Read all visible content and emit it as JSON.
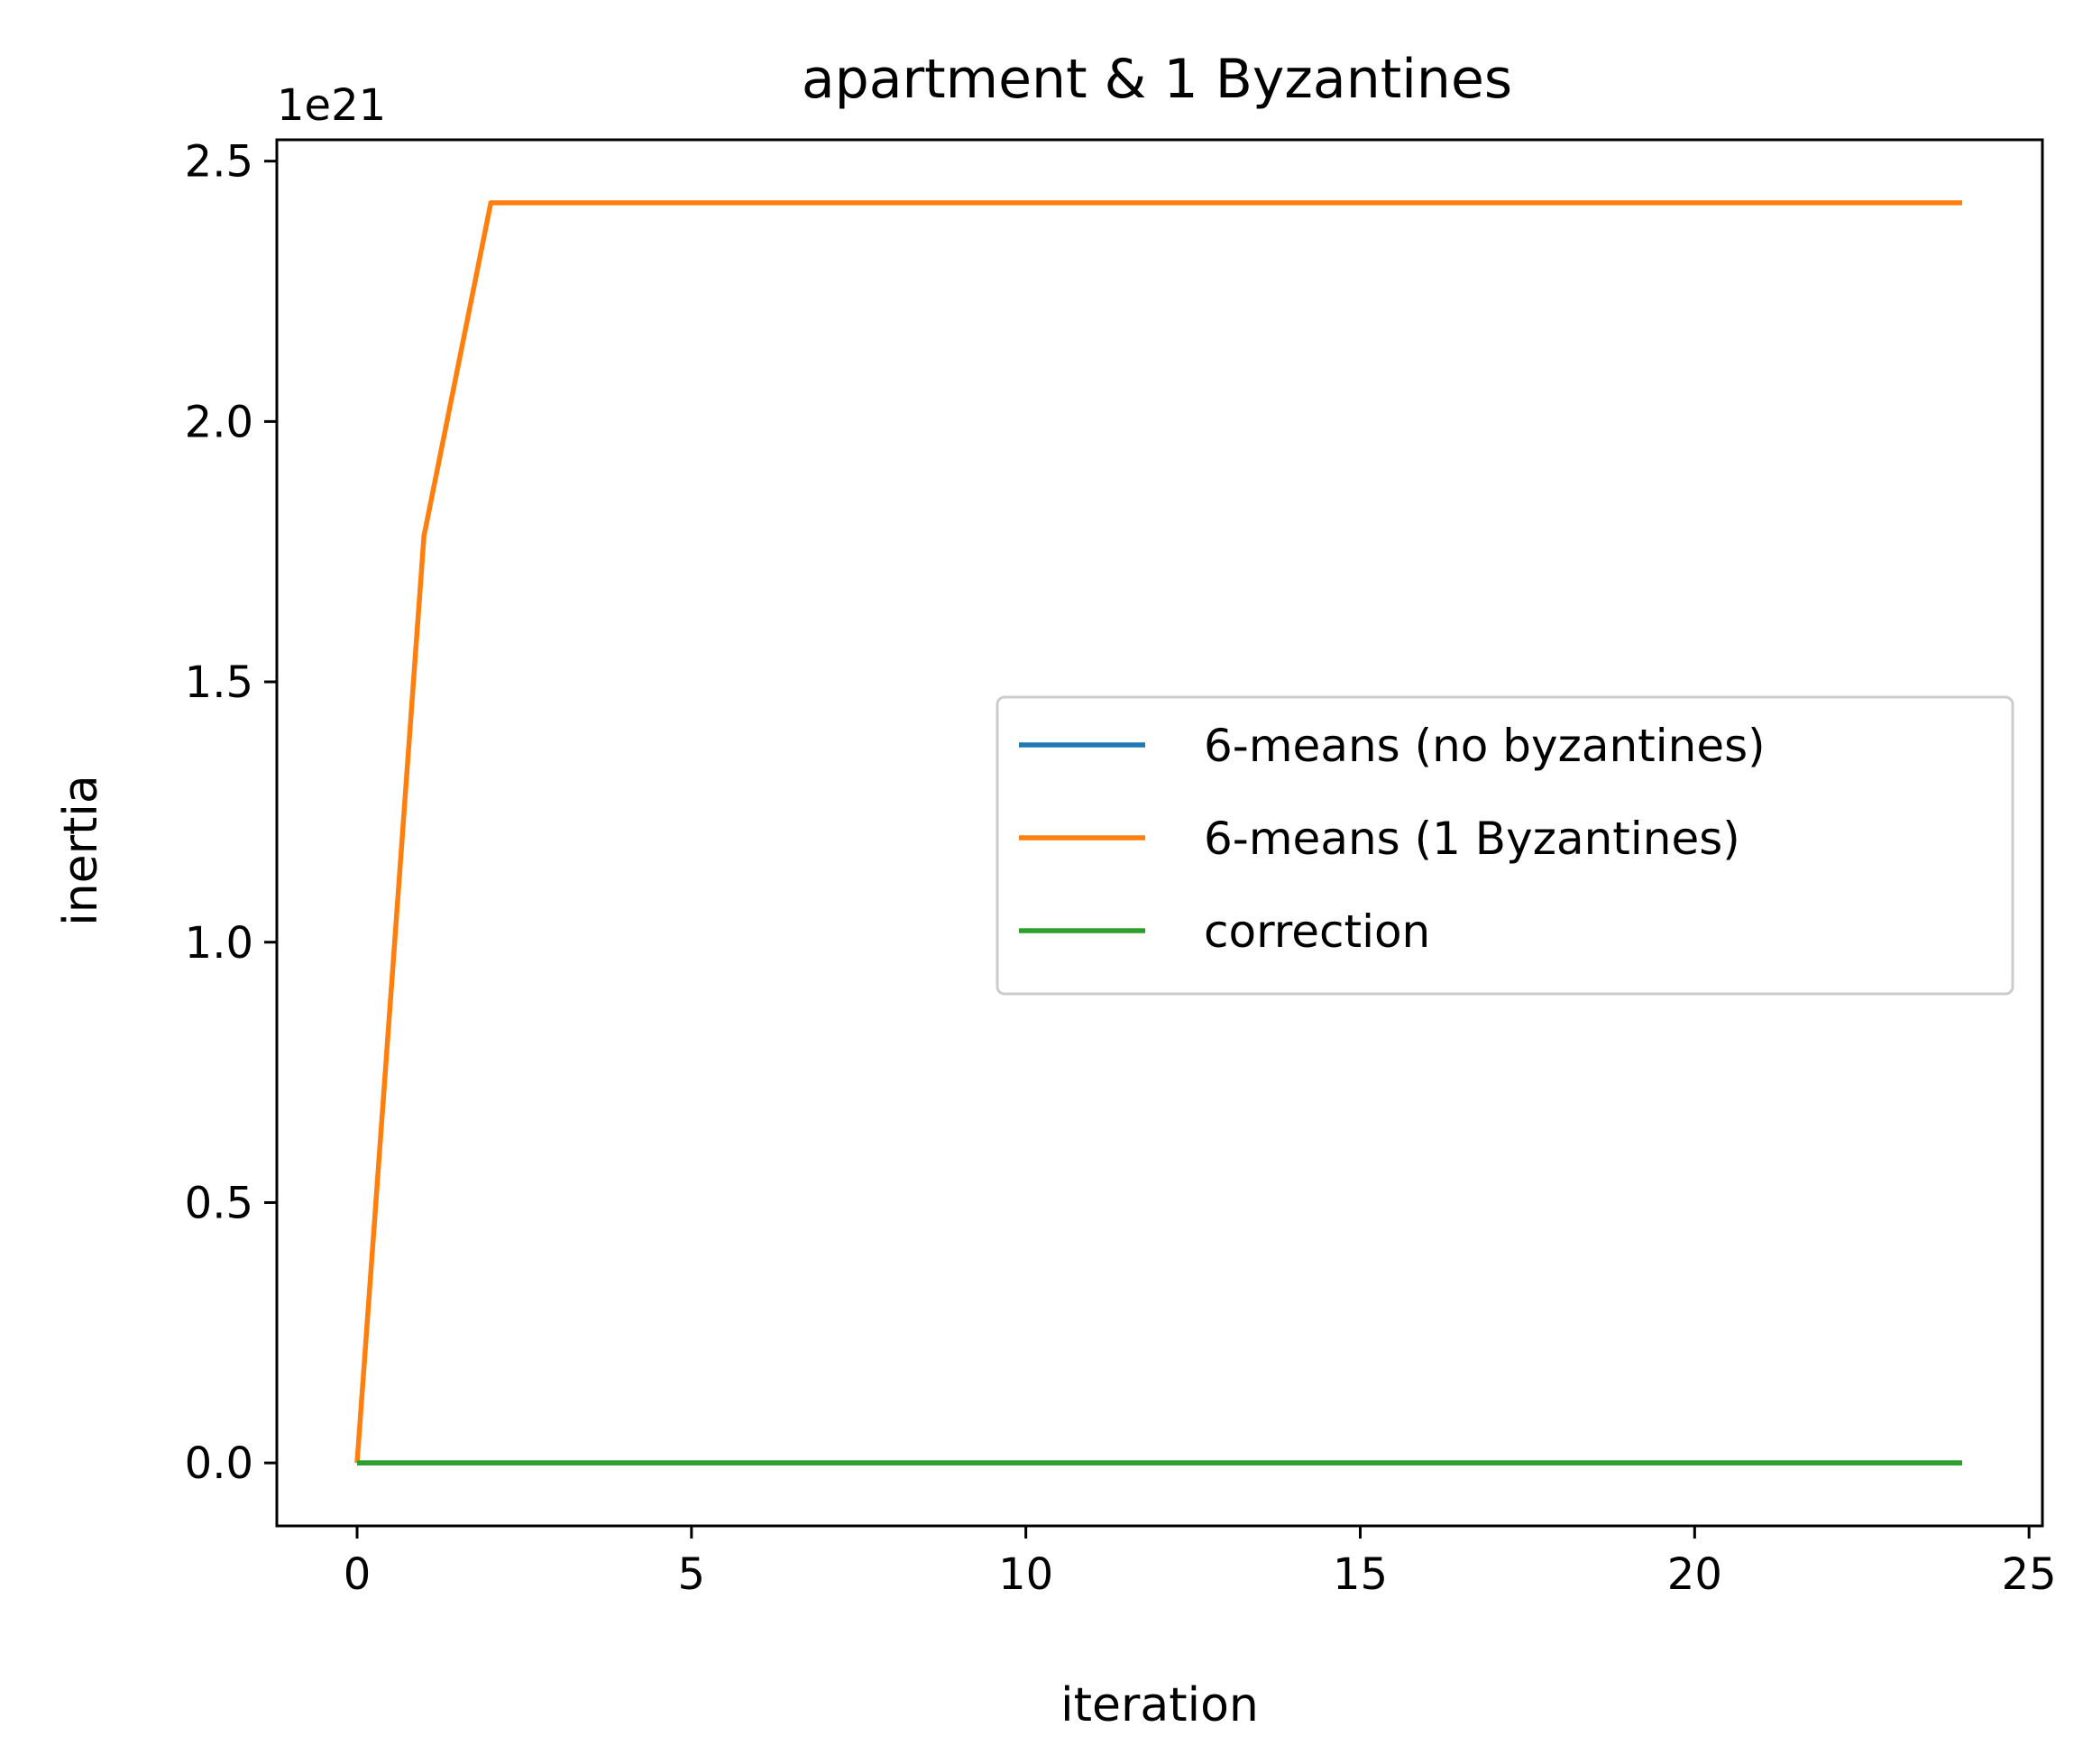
{
  "chart_data": {
    "type": "line",
    "title": "apartment & 1 Byzantines",
    "xlabel": "iteration",
    "ylabel": "inertia",
    "y_offset_label": "1e21",
    "xlim": [
      -1.2,
      25.2
    ],
    "ylim": [
      -0.121,
      2.541
    ],
    "x_ticks": [
      0,
      5,
      10,
      15,
      20,
      25
    ],
    "x_tick_labels": [
      "0",
      "5",
      "10",
      "15",
      "20",
      "25"
    ],
    "y_ticks": [
      0.0,
      0.5,
      1.0,
      1.5,
      2.0,
      2.5
    ],
    "y_tick_labels": [
      "0.0",
      "0.5",
      "1.0",
      "1.5",
      "2.0",
      "2.5"
    ],
    "grid": false,
    "legend_position": "center-right",
    "x": [
      0,
      1,
      2,
      3,
      4,
      5,
      6,
      7,
      8,
      9,
      10,
      11,
      12,
      13,
      14,
      15,
      16,
      17,
      18,
      19,
      20,
      21,
      22,
      23,
      24
    ],
    "series": [
      {
        "name": "6-means (no byzantines)",
        "color": "#1f77b4",
        "values": [
          0,
          0,
          0,
          0,
          0,
          0,
          0,
          0,
          0,
          0,
          0,
          0,
          0,
          0,
          0,
          0,
          0,
          0,
          0,
          0,
          0,
          0,
          0,
          0,
          0
        ]
      },
      {
        "name": "6-means (1 Byzantines)",
        "color": "#ff7f0e",
        "values": [
          0,
          1.78,
          2.42,
          2.42,
          2.42,
          2.42,
          2.42,
          2.42,
          2.42,
          2.42,
          2.42,
          2.42,
          2.42,
          2.42,
          2.42,
          2.42,
          2.42,
          2.42,
          2.42,
          2.42,
          2.42,
          2.42,
          2.42,
          2.42,
          2.42
        ]
      },
      {
        "name": "correction",
        "color": "#2ca02c",
        "values": [
          0,
          0,
          0,
          0,
          0,
          0,
          0,
          0,
          0,
          0,
          0,
          0,
          0,
          0,
          0,
          0,
          0,
          0,
          0,
          0,
          0,
          0,
          0,
          0,
          0
        ]
      }
    ]
  }
}
